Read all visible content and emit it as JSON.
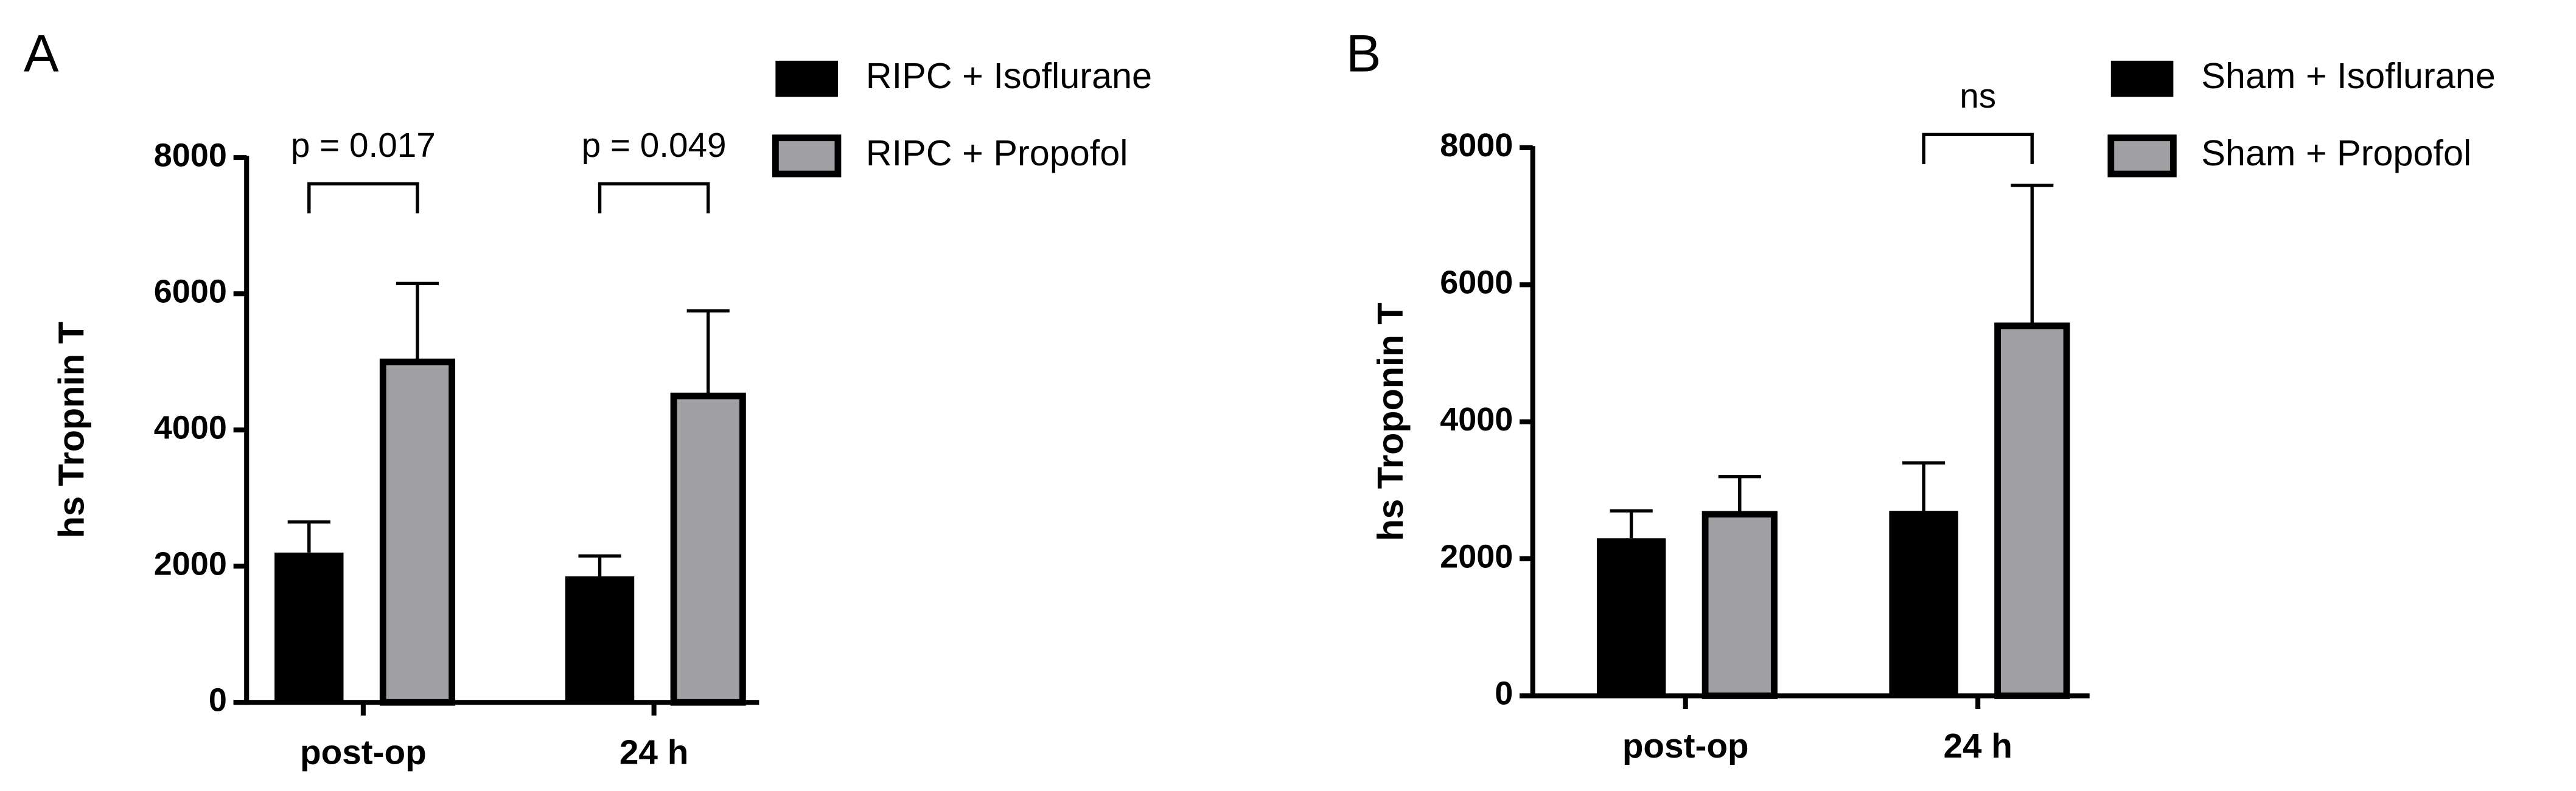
{
  "chart_data": [
    {
      "type": "bar",
      "panel": "A",
      "ylabel": "hs Tropnin T",
      "categories": [
        "post-op",
        "24 h"
      ],
      "series": [
        {
          "name": "RIPC + Isoflurane",
          "color": "#000000",
          "values": [
            2200,
            1850
          ],
          "errors": [
            450,
            300
          ]
        },
        {
          "name": "RIPC + Propofol",
          "color": "#a0a0a4",
          "values": [
            5000,
            4500
          ],
          "errors": [
            1150,
            1250
          ]
        }
      ],
      "annotations": [
        "p = 0.017",
        "p = 0.049"
      ],
      "ylim": [
        0,
        8000
      ],
      "yticks": [
        0,
        2000,
        4000,
        6000,
        8000
      ]
    },
    {
      "type": "bar",
      "panel": "B",
      "ylabel": "hs Troponin T",
      "categories": [
        "post-op",
        "24 h"
      ],
      "series": [
        {
          "name": "Sham + Isoflurane",
          "color": "#000000",
          "values": [
            2300,
            2700
          ],
          "errors": [
            400,
            700
          ]
        },
        {
          "name": "Sham + Propofol",
          "color": "#a0a0a4",
          "values": [
            2650,
            5400
          ],
          "errors": [
            550,
            2050
          ]
        }
      ],
      "annotations": [
        null,
        "ns"
      ],
      "ylim": [
        0,
        8000
      ],
      "yticks": [
        0,
        2000,
        4000,
        6000,
        8000
      ]
    }
  ]
}
